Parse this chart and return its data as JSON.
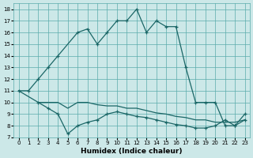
{
  "xlabel": "Humidex (Indice chaleur)",
  "bg_color": "#cce8e8",
  "grid_color": "#5aabab",
  "line_color": "#1a6666",
  "xlim": [
    -0.5,
    23.5
  ],
  "ylim": [
    7,
    18.5
  ],
  "xticks": [
    0,
    1,
    2,
    3,
    4,
    5,
    6,
    7,
    8,
    9,
    10,
    11,
    12,
    13,
    14,
    15,
    16,
    17,
    18,
    19,
    20,
    21,
    22,
    23
  ],
  "yticks": [
    7,
    8,
    9,
    10,
    11,
    12,
    13,
    14,
    15,
    16,
    17,
    18
  ],
  "line1_x": [
    0,
    1,
    2,
    3,
    4,
    6,
    7,
    8,
    9,
    10,
    11,
    12,
    13,
    14,
    15,
    16,
    17,
    18,
    19,
    20,
    21,
    22,
    23
  ],
  "line1_y": [
    11,
    11,
    12,
    13,
    14,
    16,
    16.3,
    15,
    16,
    17,
    17,
    18,
    16,
    17,
    16.5,
    16.5,
    13,
    10,
    10,
    10,
    8,
    8,
    9
  ],
  "line2_x": [
    0,
    1,
    2,
    3,
    4,
    5,
    6,
    7,
    8,
    9,
    10,
    11,
    12,
    13,
    14,
    15,
    16,
    17,
    18,
    19,
    20,
    21,
    22,
    23
  ],
  "line2_y": [
    11,
    10.5,
    10,
    10,
    10,
    9.5,
    10,
    10,
    9.8,
    9.7,
    9.7,
    9.5,
    9.5,
    9.3,
    9.1,
    9.0,
    8.8,
    8.7,
    8.5,
    8.5,
    8.3,
    8.3,
    8.3,
    8.5
  ],
  "line3_x": [
    2,
    3,
    4,
    5,
    6,
    7,
    8,
    9,
    10,
    11,
    12,
    13,
    14,
    15,
    16,
    17,
    18,
    19,
    20,
    21,
    22,
    23
  ],
  "line3_y": [
    10,
    9.5,
    9,
    7.3,
    8,
    8.3,
    8.5,
    9,
    9.2,
    9.0,
    8.8,
    8.7,
    8.5,
    8.3,
    8.1,
    8.0,
    7.8,
    7.8,
    8,
    8.5,
    8,
    8.5
  ]
}
